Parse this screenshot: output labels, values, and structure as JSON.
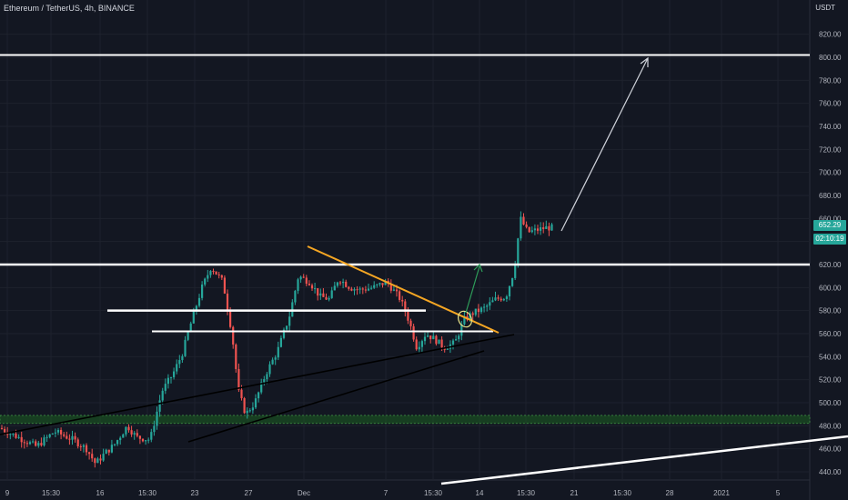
{
  "header": {
    "symbol": "Ethereum / TetherUS, 4h, BINANCE"
  },
  "axis": {
    "unit": "USDT"
  },
  "price_tag": {
    "last": "652.29",
    "countdown": "02:10:19"
  },
  "colors": {
    "background": "#131722",
    "up": "#26a69a",
    "down": "#ef5350",
    "trend_orange": "#f5a623",
    "level_white": "#ffffff",
    "zone_green": "#1b5e20"
  },
  "chart_data": {
    "type": "candlestick",
    "y_ticks": [
      440,
      460,
      480,
      500,
      520,
      540,
      560,
      580,
      600,
      620,
      640,
      660,
      680,
      700,
      720,
      740,
      760,
      780,
      800,
      820
    ],
    "ylim": [
      432,
      838
    ],
    "x_ticks": [
      "9",
      "15:30",
      "16",
      "15:30",
      "23",
      "27",
      "Dec",
      "7",
      "15:30",
      "14",
      "15:30",
      "21",
      "15:30",
      "28",
      "2021",
      "5"
    ],
    "levels": [
      {
        "name": "resistance-800",
        "price": 802
      },
      {
        "name": "resistance-620",
        "price": 620
      },
      {
        "name": "support-580",
        "price": 580
      },
      {
        "name": "support-562",
        "price": 562
      }
    ],
    "zone": {
      "from": 482,
      "to": 489
    },
    "last_price": 652.29
  }
}
